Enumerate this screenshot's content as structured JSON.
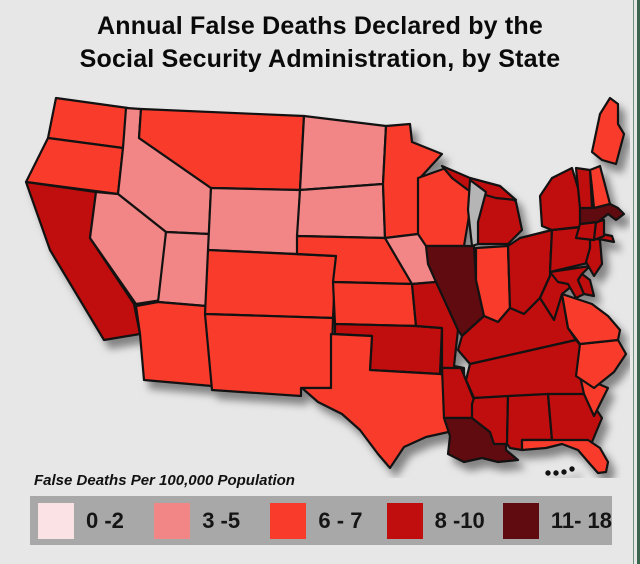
{
  "title": "Annual False Deaths Declared by the Social Security Administration, by State",
  "legend": {
    "caption": "False Deaths Per 100,000 Population",
    "bins": [
      {
        "label": "0 -2",
        "color": "#fbe3e5"
      },
      {
        "label": "3 -5",
        "color": "#f28585"
      },
      {
        "label": "6 - 7",
        "color": "#f93b2b"
      },
      {
        "label": "8 -10",
        "color": "#c00d0d"
      },
      {
        "label": "11- 18",
        "color": "#5f0b10"
      }
    ]
  },
  "map_colors": {
    "background": "#e8e7e7",
    "legend_bar": "#a8a8a8",
    "state_border": "#121212",
    "lake": "#b5b5b5"
  },
  "chart_data": {
    "type": "choropleth",
    "title": "Annual False Deaths Declared by the Social Security Administration, by State",
    "unit": "False Deaths Per 100,000 Population",
    "bins": [
      "0 -2",
      "3 -5",
      "6 - 7",
      "8 -10",
      "11- 18"
    ],
    "states": [
      {
        "id": "WA",
        "name": "Washington",
        "bin": 2,
        "range": "6 - 7"
      },
      {
        "id": "OR",
        "name": "Oregon",
        "bin": 2,
        "range": "6 - 7"
      },
      {
        "id": "CA",
        "name": "California",
        "bin": 3,
        "range": "8 -10"
      },
      {
        "id": "ID",
        "name": "Idaho",
        "bin": 1,
        "range": "3 -5"
      },
      {
        "id": "NV",
        "name": "Nevada",
        "bin": 1,
        "range": "3 -5"
      },
      {
        "id": "UT",
        "name": "Utah",
        "bin": 1,
        "range": "3 -5"
      },
      {
        "id": "AZ",
        "name": "Arizona",
        "bin": 2,
        "range": "6 - 7"
      },
      {
        "id": "MT",
        "name": "Montana",
        "bin": 2,
        "range": "6 - 7"
      },
      {
        "id": "WY",
        "name": "Wyoming",
        "bin": 1,
        "range": "3 -5"
      },
      {
        "id": "CO",
        "name": "Colorado",
        "bin": 2,
        "range": "6 - 7"
      },
      {
        "id": "NM",
        "name": "New Mexico",
        "bin": 2,
        "range": "6 - 7"
      },
      {
        "id": "ND",
        "name": "North Dakota",
        "bin": 1,
        "range": "3 -5"
      },
      {
        "id": "SD",
        "name": "South Dakota",
        "bin": 1,
        "range": "3 -5"
      },
      {
        "id": "NE",
        "name": "Nebraska",
        "bin": 2,
        "range": "6 - 7"
      },
      {
        "id": "KS",
        "name": "Kansas",
        "bin": 2,
        "range": "6 - 7"
      },
      {
        "id": "OK",
        "name": "Oklahoma",
        "bin": 3,
        "range": "8 -10"
      },
      {
        "id": "TX",
        "name": "Texas",
        "bin": 2,
        "range": "6 - 7"
      },
      {
        "id": "MN",
        "name": "Minnesota",
        "bin": 2,
        "range": "6 - 7"
      },
      {
        "id": "IA",
        "name": "Iowa",
        "bin": 1,
        "range": "3 -5"
      },
      {
        "id": "MO",
        "name": "Missouri",
        "bin": 3,
        "range": "8 -10"
      },
      {
        "id": "AR",
        "name": "Arkansas",
        "bin": 3,
        "range": "8 -10"
      },
      {
        "id": "LA",
        "name": "Louisiana",
        "bin": 4,
        "range": "11- 18"
      },
      {
        "id": "WI",
        "name": "Wisconsin",
        "bin": 2,
        "range": "6 - 7"
      },
      {
        "id": "IL",
        "name": "Illinois",
        "bin": 4,
        "range": "11- 18"
      },
      {
        "id": "IN",
        "name": "Indiana",
        "bin": 2,
        "range": "6 - 7"
      },
      {
        "id": "OH",
        "name": "Ohio",
        "bin": 3,
        "range": "8 -10"
      },
      {
        "id": "MI",
        "name": "Michigan",
        "bin": 3,
        "range": "8 -10"
      },
      {
        "id": "KY",
        "name": "Kentucky",
        "bin": 3,
        "range": "8 -10"
      },
      {
        "id": "TN",
        "name": "Tennessee",
        "bin": 3,
        "range": "8 -10"
      },
      {
        "id": "MS",
        "name": "Mississippi",
        "bin": 3,
        "range": "8 -10"
      },
      {
        "id": "AL",
        "name": "Alabama",
        "bin": 3,
        "range": "8 -10"
      },
      {
        "id": "GA",
        "name": "Georgia",
        "bin": 3,
        "range": "8 -10"
      },
      {
        "id": "FL",
        "name": "Florida",
        "bin": 2,
        "range": "6 - 7"
      },
      {
        "id": "SC",
        "name": "South Carolina",
        "bin": 2,
        "range": "6 - 7"
      },
      {
        "id": "NC",
        "name": "North Carolina",
        "bin": 2,
        "range": "6 - 7"
      },
      {
        "id": "VA",
        "name": "Virginia",
        "bin": 2,
        "range": "6 - 7"
      },
      {
        "id": "WV",
        "name": "West Virginia",
        "bin": 3,
        "range": "8 -10"
      },
      {
        "id": "MD",
        "name": "Maryland",
        "bin": 3,
        "range": "8 -10"
      },
      {
        "id": "DE",
        "name": "Delaware",
        "bin": 3,
        "range": "8 -10"
      },
      {
        "id": "PA",
        "name": "Pennsylvania",
        "bin": 3,
        "range": "8 -10"
      },
      {
        "id": "NJ",
        "name": "New Jersey",
        "bin": 3,
        "range": "8 -10"
      },
      {
        "id": "NY",
        "name": "New York",
        "bin": 3,
        "range": "8 -10"
      },
      {
        "id": "CT",
        "name": "Connecticut",
        "bin": 3,
        "range": "8 -10"
      },
      {
        "id": "RI",
        "name": "Rhode Island",
        "bin": 3,
        "range": "8 -10"
      },
      {
        "id": "MA",
        "name": "Massachusetts",
        "bin": 4,
        "range": "11- 18"
      },
      {
        "id": "VT",
        "name": "Vermont",
        "bin": 3,
        "range": "8 -10"
      },
      {
        "id": "NH",
        "name": "New Hampshire",
        "bin": 2,
        "range": "6 - 7"
      },
      {
        "id": "ME",
        "name": "Maine",
        "bin": 2,
        "range": "6 - 7"
      }
    ]
  }
}
